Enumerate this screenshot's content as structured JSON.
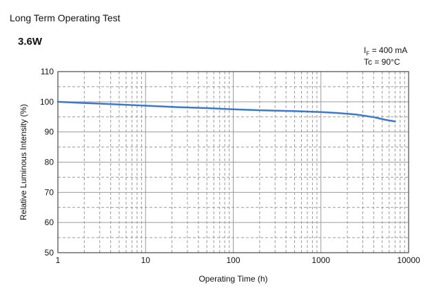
{
  "page": {
    "title": "Long Term Operating Test",
    "power": "3.6W",
    "conditions": {
      "if_symbol": "I",
      "if_sub": "F",
      "if_value": " = 400 mA",
      "tc": "Tc = 90°C"
    }
  },
  "chart_data": {
    "type": "line",
    "title": "",
    "xlabel": "Operating Time (h)",
    "ylabel": "Relative Luminous Intensity (%)",
    "x_scale": "log",
    "xlim": [
      1,
      10000
    ],
    "ylim": [
      50,
      110
    ],
    "x_ticks": [
      1,
      10,
      100,
      1000,
      10000
    ],
    "x_tick_labels": [
      "1",
      "10",
      "100",
      "1000",
      "10000"
    ],
    "y_ticks": [
      50,
      60,
      70,
      80,
      90,
      100,
      110
    ],
    "y_tick_labels": [
      "50",
      "60",
      "70",
      "80",
      "90",
      "100",
      "110"
    ],
    "grid": true,
    "line_color": "#3a78c9",
    "series": [
      {
        "x": [
          1,
          2,
          5,
          10,
          20,
          50,
          100,
          200,
          500,
          1000,
          1500,
          2500,
          4000,
          5500,
          7000
        ],
        "y": [
          100.0,
          99.6,
          99.1,
          98.7,
          98.3,
          97.9,
          97.5,
          97.2,
          96.9,
          96.6,
          96.3,
          95.8,
          94.9,
          94.0,
          93.5
        ]
      }
    ]
  }
}
